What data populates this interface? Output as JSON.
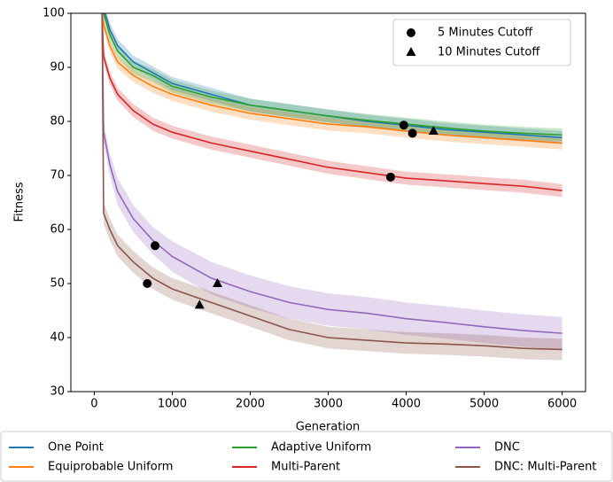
{
  "chart_data": {
    "type": "line",
    "xlabel": "Generation",
    "ylabel": "Fitness",
    "xlim": [
      -300,
      6300
    ],
    "ylim": [
      30,
      100
    ],
    "xticks": [
      0,
      1000,
      2000,
      3000,
      4000,
      5000,
      6000
    ],
    "yticks": [
      30,
      40,
      50,
      60,
      70,
      80,
      90,
      100
    ],
    "x": [
      100,
      120,
      200,
      300,
      500,
      750,
      1000,
      1500,
      2000,
      2500,
      3000,
      3500,
      4000,
      4500,
      5000,
      5500,
      6000
    ],
    "series": [
      {
        "name": "One Point",
        "color": "#1f77b4",
        "values": [
          100,
          101,
          97,
          94,
          91,
          89,
          87,
          85,
          83,
          82,
          81,
          80,
          79.3,
          78.5,
          78,
          77.5,
          77
        ],
        "spread": [
          1,
          1,
          1.2,
          1.2,
          1.2,
          1.2,
          1.2,
          1.2,
          1.2,
          1.2,
          1.2,
          1.2,
          1.2,
          1.2,
          1.2,
          1.2,
          1.2
        ]
      },
      {
        "name": "Equiprobable Uniform",
        "color": "#ff7f0e",
        "values": [
          100,
          98,
          94,
          91,
          88.5,
          86.5,
          85,
          83,
          81.5,
          80.5,
          79.5,
          79,
          78.2,
          77.5,
          77,
          76.5,
          76
        ],
        "spread": [
          1,
          1,
          1.2,
          1.2,
          1.2,
          1.2,
          1.2,
          1.2,
          1.2,
          1.2,
          1.2,
          1.2,
          1.2,
          1.2,
          1.2,
          1.2,
          1.2
        ]
      },
      {
        "name": "Adaptive Uniform",
        "color": "#2ca02c",
        "values": [
          100,
          100,
          96,
          93,
          90,
          88.5,
          86.5,
          84.5,
          83,
          82,
          81,
          80.2,
          79.5,
          78.8,
          78.2,
          77.8,
          77.5
        ],
        "spread": [
          1,
          1,
          1.2,
          1.2,
          1.2,
          1.2,
          1.2,
          1.2,
          1.2,
          1.2,
          1.2,
          1.2,
          1.2,
          1.2,
          1.2,
          1.2,
          1.2
        ]
      },
      {
        "name": "Multi-Parent",
        "color": "#d62728",
        "values": [
          100,
          92,
          88,
          85,
          82,
          79.5,
          78,
          76,
          74.5,
          73,
          71.5,
          70.5,
          69.5,
          69,
          68.5,
          68,
          67.2
        ],
        "spread": [
          1,
          1.2,
          1.2,
          1.2,
          1.2,
          1.2,
          1.2,
          1.2,
          1.2,
          1.2,
          1.2,
          1.2,
          1.2,
          1.2,
          1.2,
          1.2,
          1.2
        ]
      },
      {
        "name": "DNC",
        "color": "#9467bd",
        "values": [
          100,
          78,
          72,
          67,
          62,
          58,
          55,
          51,
          48.5,
          46.5,
          45.2,
          44.5,
          43.5,
          42.8,
          42,
          41.3,
          40.8
        ],
        "spread": [
          1,
          2,
          2,
          2.5,
          2.5,
          2.5,
          2.8,
          3,
          3,
          3,
          3,
          3,
          3,
          3,
          3,
          3,
          3
        ]
      },
      {
        "name": "DNC: Multi-Parent",
        "color": "#8c564b",
        "values": [
          100,
          63,
          60,
          57,
          54,
          51,
          49,
          46.5,
          44,
          41.5,
          40,
          39.5,
          39,
          38.8,
          38.5,
          38,
          37.8
        ],
        "spread": [
          1,
          2,
          2,
          2,
          2,
          2,
          2,
          2,
          2,
          2,
          2,
          2,
          2,
          2,
          2,
          2,
          2
        ]
      }
    ],
    "markers": [
      {
        "name": "5 Minutes Cutoff",
        "marker": "circle",
        "x": [
          3970,
          4080,
          3800,
          780,
          680
        ],
        "y": [
          79.3,
          77.8,
          69.7,
          57,
          50
        ]
      },
      {
        "name": "10 Minutes Cutoff",
        "marker": "triangle",
        "x": [
          4350,
          1580,
          1350
        ],
        "y": [
          78.2,
          50,
          46
        ]
      }
    ]
  }
}
